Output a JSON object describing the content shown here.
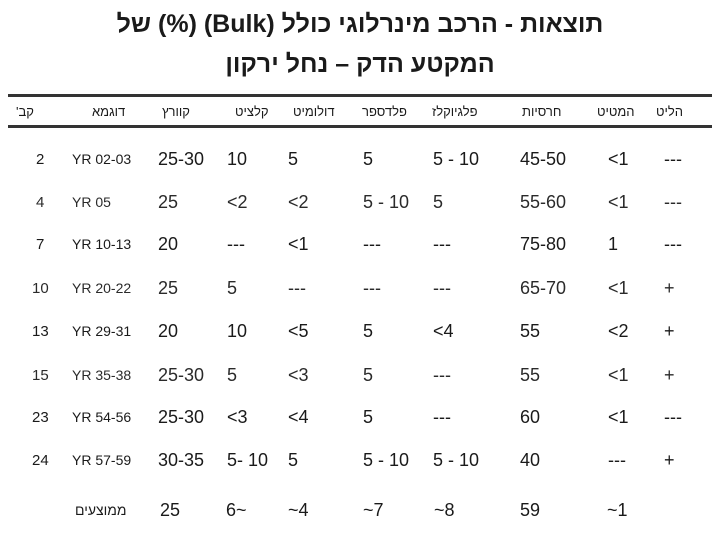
{
  "title": {
    "line1": "תוצאות - הרכב מינרלוגי כולל (Bulk) (%) של",
    "line2": "המקטע הדק – נחל ירקון"
  },
  "headers": [
    "קב'",
    "דוגמא",
    "קוורץ",
    "קלציט",
    "דולומיט",
    "פלדספר",
    "פלגיוקלז",
    "חרסיות",
    "המטיט",
    "הליט"
  ],
  "rows": [
    [
      "2",
      "YR 02-03",
      "25-30",
      "10",
      "5",
      "5",
      "5  - 10",
      "45-50",
      "<1",
      "---"
    ],
    [
      "4",
      "YR 05",
      "25",
      "<2",
      "<2",
      "5 - 10",
      "5",
      "55-60",
      "<1",
      "---"
    ],
    [
      "7",
      "YR 10-13",
      "20",
      "---",
      "<1",
      "---",
      "---",
      "75-80",
      "1",
      "---"
    ],
    [
      "10",
      "YR 20-22",
      "25",
      "5",
      "---",
      "---",
      "---",
      "65-70",
      "<1",
      "+"
    ],
    [
      "13",
      "YR 29-31",
      "20",
      "10",
      "<5",
      "5",
      "<4",
      "55",
      "<2",
      "+"
    ],
    [
      "15",
      "YR 35-38",
      "25-30",
      "5",
      "<3",
      "5",
      "---",
      "55",
      "<1",
      "+"
    ],
    [
      "23",
      "YR 54-56",
      "25-30",
      "<3",
      "<4",
      "5",
      "---",
      "60",
      "<1",
      "---"
    ],
    [
      "24",
      "YR 57-59",
      "30-35",
      "5- 10",
      "5",
      "5 -  10",
      "5 -  10",
      "40",
      "---",
      "+"
    ]
  ],
  "averages": {
    "label": "ממוצעים",
    "values": [
      "25",
      "6~",
      "~4",
      "~7",
      "~8",
      "59",
      "~1"
    ]
  }
}
